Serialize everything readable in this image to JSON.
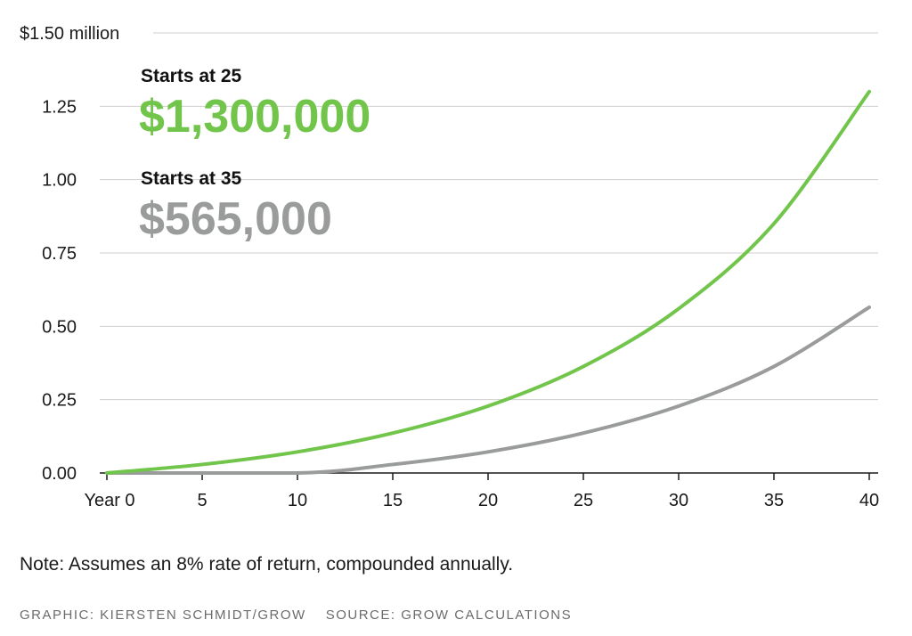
{
  "chart_data": {
    "type": "line",
    "title": "",
    "xlabel": "",
    "ylabel": "",
    "xlim": [
      0,
      40
    ],
    "ylim": [
      0,
      1.5
    ],
    "x_ticks": [
      0,
      5,
      10,
      15,
      20,
      25,
      30,
      35,
      40
    ],
    "x_tick_labels": [
      "Year 0",
      "5",
      "10",
      "15",
      "20",
      "25",
      "30",
      "35",
      "40"
    ],
    "y_ticks": [
      0,
      0.25,
      0.5,
      0.75,
      1.0,
      1.25,
      1.5
    ],
    "y_tick_labels": [
      "0.00",
      "0.25",
      "0.50",
      "0.75",
      "1.00",
      "1.25",
      "$1.50 million"
    ],
    "grid": true,
    "series": [
      {
        "name": "Starts at 25",
        "color": "#72c54b",
        "x": [
          0,
          5,
          10,
          15,
          20,
          25,
          30,
          35,
          40
        ],
        "y": [
          0,
          0.029,
          0.072,
          0.136,
          0.228,
          0.363,
          0.56,
          0.85,
          1.3
        ]
      },
      {
        "name": "Starts at 35",
        "color": "#9a9c9b",
        "x": [
          0,
          10,
          15,
          20,
          25,
          30,
          35,
          40
        ],
        "y": [
          0,
          0,
          0.029,
          0.072,
          0.136,
          0.228,
          0.363,
          0.565
        ]
      }
    ],
    "annotations": [
      {
        "heading": "Starts at 25",
        "value": "$1,300,000",
        "color": "#72c54b"
      },
      {
        "heading": "Starts at 35",
        "value": "$565,000",
        "color": "#9a9c9b"
      }
    ]
  },
  "footer": {
    "note": "Note: Assumes an 8% rate of return, compounded annually.",
    "credit": "GRAPHIC: KIERSTEN SCHMIDT/GROW",
    "source": "SOURCE: GROW CALCULATIONS"
  }
}
